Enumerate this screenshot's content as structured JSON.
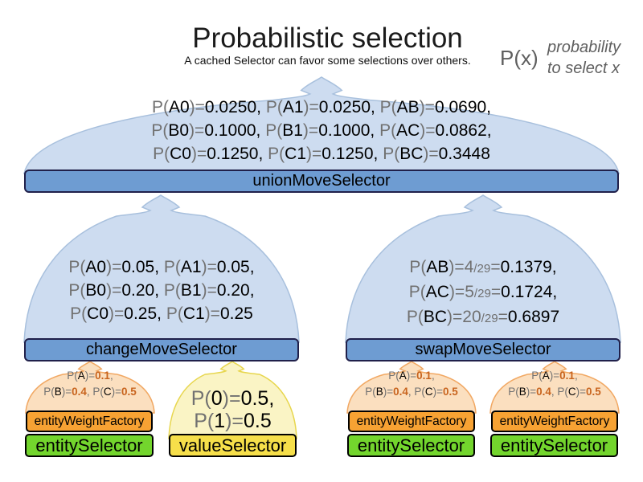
{
  "title": "Probabilistic selection",
  "subtitle": "A cached Selector can favor some selections over others.",
  "legend": {
    "symbol": "P(x)",
    "description": [
      "probability",
      "to select x"
    ]
  },
  "colors": {
    "funnel_blue": "#cddcf0",
    "funnel_orange": "#fbdfbf",
    "funnel_yellow": "#faf4c5",
    "bar_blue": "#6e9cd2",
    "box_orange": "#f7a233",
    "box_green": "#73d52d",
    "box_yellow": "#f6df4a",
    "text_gray": "#717171",
    "number_orange": "#c8641e"
  },
  "union": {
    "label": "unionMoveSelector",
    "lines": [
      [
        {
          "t": "P(",
          "s": "g"
        },
        {
          "t": "A0",
          "s": "b"
        },
        {
          "t": ")=",
          "s": "g"
        },
        {
          "t": "0.0250, ",
          "s": "b"
        },
        {
          "t": "P(",
          "s": "g"
        },
        {
          "t": "A1",
          "s": "b"
        },
        {
          "t": ")=",
          "s": "g"
        },
        {
          "t": "0.0250, ",
          "s": "b"
        },
        {
          "t": "P(",
          "s": "g"
        },
        {
          "t": "AB",
          "s": "b"
        },
        {
          "t": ")=",
          "s": "g"
        },
        {
          "t": "0.0690,",
          "s": "b"
        }
      ],
      [
        {
          "t": "P(",
          "s": "g"
        },
        {
          "t": "B0",
          "s": "b"
        },
        {
          "t": ")=",
          "s": "g"
        },
        {
          "t": "0.1000, ",
          "s": "b"
        },
        {
          "t": "P(",
          "s": "g"
        },
        {
          "t": "B1",
          "s": "b"
        },
        {
          "t": ")=",
          "s": "g"
        },
        {
          "t": "0.1000, ",
          "s": "b"
        },
        {
          "t": "P(",
          "s": "g"
        },
        {
          "t": "AC",
          "s": "b"
        },
        {
          "t": ")=",
          "s": "g"
        },
        {
          "t": "0.0862,",
          "s": "b"
        }
      ],
      [
        {
          "t": "P(",
          "s": "g"
        },
        {
          "t": "C0",
          "s": "b"
        },
        {
          "t": ")=",
          "s": "g"
        },
        {
          "t": "0.1250, ",
          "s": "b"
        },
        {
          "t": "P(",
          "s": "g"
        },
        {
          "t": "C1",
          "s": "b"
        },
        {
          "t": ")=",
          "s": "g"
        },
        {
          "t": "0.1250, ",
          "s": "b"
        },
        {
          "t": "P(",
          "s": "g"
        },
        {
          "t": "BC",
          "s": "b"
        },
        {
          "t": ")=",
          "s": "g"
        },
        {
          "t": "0.3448",
          "s": "b"
        }
      ]
    ]
  },
  "change": {
    "label": "changeMoveSelector",
    "lines": [
      [
        {
          "t": "P(",
          "s": "g"
        },
        {
          "t": "A0",
          "s": "b"
        },
        {
          "t": ")=",
          "s": "g"
        },
        {
          "t": "0.05, ",
          "s": "b"
        },
        {
          "t": "P(",
          "s": "g"
        },
        {
          "t": "A1",
          "s": "b"
        },
        {
          "t": ")=",
          "s": "g"
        },
        {
          "t": "0.05,",
          "s": "b"
        }
      ],
      [
        {
          "t": "P(",
          "s": "g"
        },
        {
          "t": "B0",
          "s": "b"
        },
        {
          "t": ")=",
          "s": "g"
        },
        {
          "t": "0.20, ",
          "s": "b"
        },
        {
          "t": "P(",
          "s": "g"
        },
        {
          "t": "B1",
          "s": "b"
        },
        {
          "t": ")=",
          "s": "g"
        },
        {
          "t": "0.20,",
          "s": "b"
        }
      ],
      [
        {
          "t": "P(",
          "s": "g"
        },
        {
          "t": "C0",
          "s": "b"
        },
        {
          "t": ")=",
          "s": "g"
        },
        {
          "t": "0.25, ",
          "s": "b"
        },
        {
          "t": "P(",
          "s": "g"
        },
        {
          "t": "C1",
          "s": "b"
        },
        {
          "t": ")=",
          "s": "g"
        },
        {
          "t": "0.25",
          "s": "b"
        }
      ]
    ]
  },
  "swap": {
    "label": "swapMoveSelector",
    "lines": [
      [
        {
          "t": "P(",
          "s": "g"
        },
        {
          "t": "AB",
          "s": "b"
        },
        {
          "t": ")=",
          "s": "g"
        },
        {
          "t": "4",
          "s": "g"
        },
        {
          "t": "/29",
          "s": "f"
        },
        {
          "t": "=",
          "s": "g"
        },
        {
          "t": "0.1379,",
          "s": "b"
        }
      ],
      [
        {
          "t": "P(",
          "s": "g"
        },
        {
          "t": "AC",
          "s": "b"
        },
        {
          "t": ")=",
          "s": "g"
        },
        {
          "t": "5",
          "s": "g"
        },
        {
          "t": "/29",
          "s": "f"
        },
        {
          "t": "=",
          "s": "g"
        },
        {
          "t": "0.1724,",
          "s": "b"
        }
      ],
      [
        {
          "t": "P(",
          "s": "g"
        },
        {
          "t": "BC",
          "s": "b"
        },
        {
          "t": ")=",
          "s": "g"
        },
        {
          "t": "20",
          "s": "g"
        },
        {
          "t": "/29",
          "s": "f"
        },
        {
          "t": "=",
          "s": "g"
        },
        {
          "t": "0.6897",
          "s": "b"
        }
      ]
    ]
  },
  "columns": [
    {
      "weight_label": "entityWeightFactory",
      "selector_label": "entitySelector",
      "lines": [
        [
          {
            "t": "P(",
            "s": "g"
          },
          {
            "t": "A",
            "s": "b"
          },
          {
            "t": ")=",
            "s": "g"
          },
          {
            "t": "0.1",
            "s": "o"
          },
          {
            "t": ",",
            "s": "g"
          }
        ],
        [
          {
            "t": "P(",
            "s": "g"
          },
          {
            "t": "B",
            "s": "b"
          },
          {
            "t": ")=",
            "s": "g"
          },
          {
            "t": "0.4",
            "s": "o"
          },
          {
            "t": ", ",
            "s": "g"
          },
          {
            "t": "P(",
            "s": "g"
          },
          {
            "t": "C",
            "s": "b"
          },
          {
            "t": ")=",
            "s": "g"
          },
          {
            "t": "0.5",
            "s": "o"
          }
        ]
      ]
    },
    {
      "selector_label": "valueSelector",
      "lines": [
        [
          {
            "t": "P(",
            "s": "g"
          },
          {
            "t": "0",
            "s": "b"
          },
          {
            "t": ")=",
            "s": "g"
          },
          {
            "t": "0.5,",
            "s": "b"
          }
        ],
        [
          {
            "t": "P(",
            "s": "g"
          },
          {
            "t": "1",
            "s": "b"
          },
          {
            "t": ")=",
            "s": "g"
          },
          {
            "t": "0.5",
            "s": "b"
          }
        ]
      ]
    },
    {
      "weight_label": "entityWeightFactory",
      "selector_label": "entitySelector",
      "lines": [
        [
          {
            "t": "P(",
            "s": "g"
          },
          {
            "t": "A",
            "s": "b"
          },
          {
            "t": ")=",
            "s": "g"
          },
          {
            "t": "0.1",
            "s": "o"
          },
          {
            "t": ",",
            "s": "g"
          }
        ],
        [
          {
            "t": "P(",
            "s": "g"
          },
          {
            "t": "B",
            "s": "b"
          },
          {
            "t": ")=",
            "s": "g"
          },
          {
            "t": "0.4",
            "s": "o"
          },
          {
            "t": ", ",
            "s": "g"
          },
          {
            "t": "P(",
            "s": "g"
          },
          {
            "t": "C",
            "s": "b"
          },
          {
            "t": ")=",
            "s": "g"
          },
          {
            "t": "0.5",
            "s": "o"
          }
        ]
      ]
    },
    {
      "weight_label": "entityWeightFactory",
      "selector_label": "entitySelector",
      "lines": [
        [
          {
            "t": "P(",
            "s": "g"
          },
          {
            "t": "A",
            "s": "b"
          },
          {
            "t": ")=",
            "s": "g"
          },
          {
            "t": "0.1",
            "s": "o"
          },
          {
            "t": ",",
            "s": "g"
          }
        ],
        [
          {
            "t": "P(",
            "s": "g"
          },
          {
            "t": "B",
            "s": "b"
          },
          {
            "t": ")=",
            "s": "g"
          },
          {
            "t": "0.4",
            "s": "o"
          },
          {
            "t": ", ",
            "s": "g"
          },
          {
            "t": "P(",
            "s": "g"
          },
          {
            "t": "C",
            "s": "b"
          },
          {
            "t": ")=",
            "s": "g"
          },
          {
            "t": "0.5",
            "s": "o"
          }
        ]
      ]
    }
  ]
}
